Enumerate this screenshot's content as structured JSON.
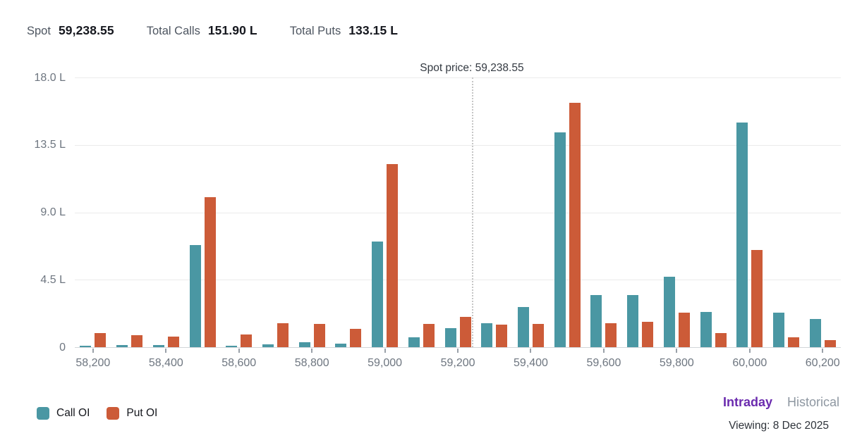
{
  "header": {
    "spot": {
      "label": "Spot",
      "value": "59,238.55"
    },
    "total_calls": {
      "label": "Total Calls",
      "value": "151.90 L"
    },
    "total_puts": {
      "label": "Total Puts",
      "value": "133.15 L"
    }
  },
  "chart_data": {
    "type": "bar",
    "title": "Open Interest by strike (visible pixels only)",
    "categories": [
      "58,200",
      "58,300",
      "58,400",
      "58,500",
      "58,600",
      "58,700",
      "58,800",
      "58,900",
      "59,000",
      "59,100",
      "59,200",
      "59,300",
      "59,400",
      "59,500",
      "59,600",
      "59,700",
      "59,800",
      "59,900",
      "60,000",
      "60,100",
      "60,200"
    ],
    "series": [
      {
        "name": "Call OI",
        "color": "#4A97A3",
        "values": [
          0.1,
          0.15,
          0.15,
          6.8,
          0.1,
          0.2,
          0.35,
          0.25,
          7.05,
          0.65,
          1.25,
          1.6,
          2.7,
          14.35,
          3.5,
          3.5,
          4.7,
          2.35,
          15.0,
          2.3,
          1.9
        ]
      },
      {
        "name": "Put OI",
        "color": "#CC5B38",
        "values": [
          0.95,
          0.8,
          0.7,
          10.0,
          0.85,
          1.6,
          1.55,
          1.2,
          12.2,
          1.55,
          2.0,
          1.5,
          1.55,
          16.3,
          1.6,
          1.7,
          2.3,
          0.95,
          6.5,
          0.65,
          0.45
        ]
      }
    ],
    "ylim": [
      0,
      18
    ],
    "ytick_labels": [
      "18.0 L",
      "13.5 L",
      "9.0 L",
      "4.5 L",
      "0"
    ],
    "x_label_every": 2,
    "grid": true,
    "legend_position": "bottom-left",
    "spot_line": {
      "label": "Spot price: 59,238.55",
      "value": 59238.55,
      "x_domain": [
        58150,
        60250
      ]
    }
  },
  "legend": [
    {
      "label": "Call OI",
      "color": "#4A97A3"
    },
    {
      "label": "Put OI",
      "color": "#CC5B38"
    }
  ],
  "footer": {
    "intraday_label": "Intraday",
    "historical_label": "Historical",
    "viewing_label": "Viewing: 8 Dec 2025"
  },
  "colors": {
    "call": "#4A97A3",
    "put": "#CC5B38",
    "accent_purple": "#6A2AAE",
    "grid": "#ebebeb",
    "axis_text": "#6e7680"
  }
}
